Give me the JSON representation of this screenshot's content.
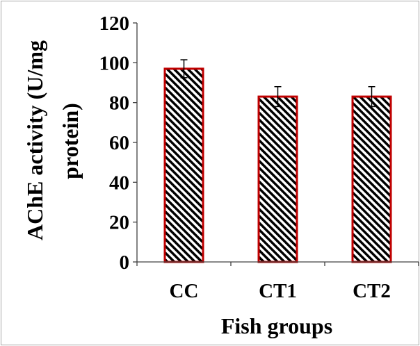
{
  "chart_data": {
    "type": "bar",
    "categories": [
      "CC",
      "CT1",
      "CT2"
    ],
    "series": [
      {
        "values": [
          97,
          83,
          83
        ],
        "error": [
          4.5,
          5,
          5
        ]
      }
    ],
    "xlabel": "Fish groups",
    "ylabel_lines": [
      "AChE activity (U/mg",
      "protein)"
    ],
    "ylim": [
      0,
      120
    ],
    "yticks": [
      0,
      20,
      40,
      60,
      80,
      100,
      120
    ],
    "grid": false,
    "legend": "none"
  },
  "colors": {
    "bar_border": "#C00000",
    "hatch_stripe": "#000000",
    "hatch_background": "#FFFFFF",
    "axis": "#404040",
    "error_bar": "#000000",
    "frame": "#A6A6A6",
    "text": "#000000"
  }
}
